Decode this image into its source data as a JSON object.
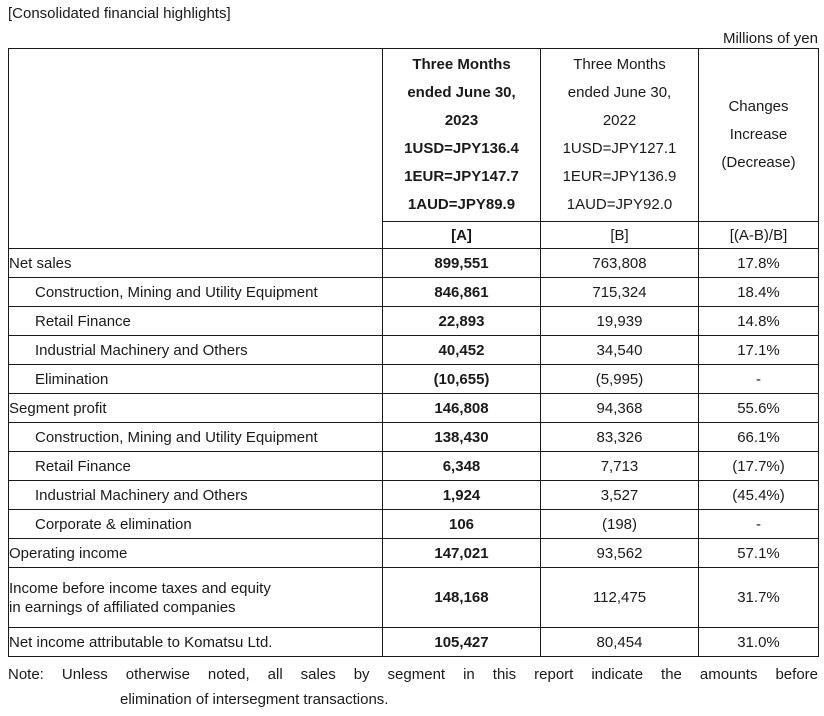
{
  "page": {
    "title": "[Consolidated financial highlights]",
    "unit_label": "Millions of yen"
  },
  "table": {
    "header": {
      "col_a_lines": "Three Months\nended June 30,\n2023\n1USD=JPY136.4\n1EUR=JPY147.7\n1AUD=JPY89.9",
      "col_b_lines": "Three Months\nended June 30,\n2022\n1USD=JPY127.1\n1EUR=JPY136.9\n1AUD=JPY92.0",
      "col_c_lines": "Changes\nIncrease\n(Decrease)",
      "tag_a": "[A]",
      "tag_b": "[B]",
      "tag_c": "[(A-B)/B]"
    },
    "rows": [
      {
        "label": "Net sales",
        "a": "899,551",
        "b": "763,808",
        "c": "17.8%"
      },
      {
        "label": "Construction, Mining and Utility Equipment",
        "a": "846,861",
        "b": "715,324",
        "c": "18.4%"
      },
      {
        "label": "Retail Finance",
        "a": "22,893",
        "b": "19,939",
        "c": "14.8%"
      },
      {
        "label": "Industrial Machinery and Others",
        "a": "40,452",
        "b": "34,540",
        "c": "17.1%"
      },
      {
        "label": "Elimination",
        "a": "(10,655)",
        "b": "(5,995)",
        "c": "-"
      },
      {
        "label": "Segment profit",
        "a": "146,808",
        "b": "94,368",
        "c": "55.6%"
      },
      {
        "label": "Construction, Mining and Utility Equipment",
        "a": "138,430",
        "b": "83,326",
        "c": "66.1%"
      },
      {
        "label": "Retail Finance",
        "a": "6,348",
        "b": "7,713",
        "c": "(17.7%)"
      },
      {
        "label": "Industrial Machinery and Others",
        "a": "1,924",
        "b": "3,527",
        "c": "(45.4%)"
      },
      {
        "label": "Corporate & elimination",
        "a": "106",
        "b": "(198)",
        "c": "-"
      },
      {
        "label": "Operating income",
        "a": "147,021",
        "b": "93,562",
        "c": "57.1%"
      },
      {
        "label": "Income before income taxes and equity",
        "label2": "in earnings of affiliated companies",
        "a": "148,168",
        "b": "112,475",
        "c": "31.7%"
      },
      {
        "label": "Net income attributable to Komatsu Ltd.",
        "a": "105,427",
        "b": "80,454",
        "c": "31.0%"
      }
    ]
  },
  "note": {
    "line1": "Note: Unless otherwise noted, all sales by segment in this report indicate the amounts before",
    "line2": "elimination of intersegment transactions."
  }
}
